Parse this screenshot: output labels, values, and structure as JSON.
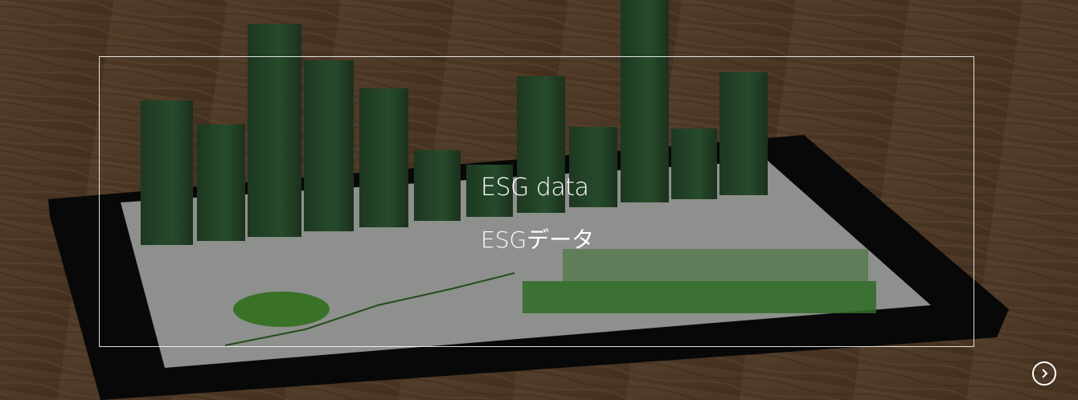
{
  "banner": {
    "title": "ESG data",
    "subtitle": "ESGデータ"
  }
}
